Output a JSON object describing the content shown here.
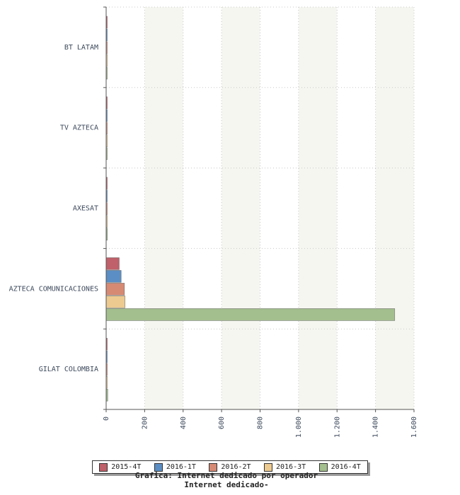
{
  "chart_data": {
    "type": "bar",
    "orientation": "horizontal",
    "title": "Internet dedicado-",
    "subtitle": "Grafica: Internet dedicado por operador",
    "categories": [
      "BT LATAM",
      "TV AZTECA",
      "AXESAT",
      "AZTECA COMUNICACIONES",
      "GILAT COLOMBIA"
    ],
    "series": [
      {
        "name": "2015-4T",
        "color": "#c0606a",
        "values": [
          3,
          1,
          3,
          68,
          4
        ]
      },
      {
        "name": "2016-1T",
        "color": "#5b8ec4",
        "values": [
          5,
          2,
          4,
          78,
          3
        ]
      },
      {
        "name": "2016-2T",
        "color": "#d68a74",
        "values": [
          3,
          1,
          5,
          95,
          4
        ]
      },
      {
        "name": "2016-3T",
        "color": "#ecca90",
        "values": [
          2,
          1,
          4,
          98,
          3
        ]
      },
      {
        "name": "2016-4T",
        "color": "#a3bf8e",
        "values": [
          4,
          2,
          6,
          1500,
          8
        ]
      }
    ],
    "xlim": [
      0,
      1600
    ],
    "ticks": [
      0,
      200,
      400,
      600,
      800,
      1000,
      1200,
      1400,
      1600
    ],
    "tick_labels": [
      "0",
      "200",
      "400",
      "600",
      "800",
      "1.000",
      "1.200",
      "1.400",
      "1.600"
    ],
    "grid": true,
    "legend_position": "bottom"
  }
}
